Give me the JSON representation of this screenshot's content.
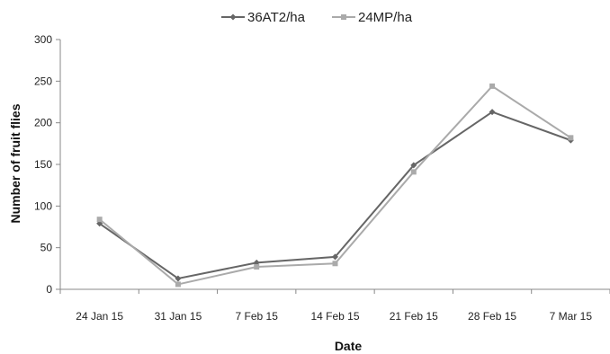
{
  "chart_data": {
    "type": "line",
    "title": "",
    "xlabel": "Date",
    "ylabel": "Number of fruit flies",
    "categories": [
      "24 Jan 15",
      "31 Jan 15",
      "7 Feb 15",
      "14 Feb 15",
      "21 Feb 15",
      "28 Feb 15",
      "7 Mar 15"
    ],
    "ylim": [
      0,
      300
    ],
    "yticks": [
      "0",
      "50",
      "100",
      "150",
      "200",
      "250",
      "300"
    ],
    "grid": false,
    "legend_position": "top",
    "series": [
      {
        "name": "36AT2/ha",
        "values": [
          79,
          13,
          32,
          39,
          149,
          213,
          179
        ],
        "color": "#666666",
        "marker": "diamond"
      },
      {
        "name": "24MP/ha",
        "values": [
          84,
          6,
          27,
          31,
          141,
          244,
          182
        ],
        "color": "#aaaaaa",
        "marker": "square"
      }
    ]
  }
}
